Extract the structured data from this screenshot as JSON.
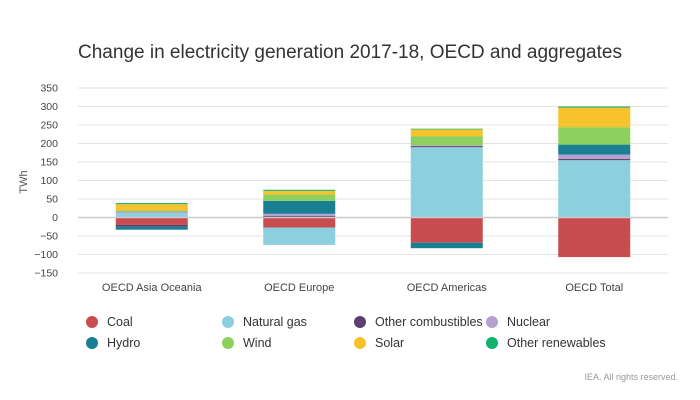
{
  "chart_data": {
    "type": "bar",
    "stacked": true,
    "title": "Change in electricity generation 2017-18, OECD and aggregates",
    "ylabel": "TWh",
    "xlabel": "",
    "ylim": [
      -150,
      350
    ],
    "yticks": [
      350,
      300,
      250,
      200,
      150,
      100,
      50,
      0,
      -50,
      -100,
      -150
    ],
    "ytick_labels": [
      "350",
      "300",
      "250",
      "200",
      "150",
      "100",
      "50",
      "0",
      "−50",
      "−100",
      "−150"
    ],
    "grid": true,
    "legend_position": "bottom",
    "categories": [
      "OECD Asia Oceania",
      "OECD Europe",
      "OECD Americas",
      "OECD Total"
    ],
    "series": [
      {
        "name": "Coal",
        "color": "#c94c4f",
        "values": [
          -20,
          -27,
          -68,
          -107
        ]
      },
      {
        "name": "Natural gas",
        "color": "#8ccfdf",
        "values": [
          12,
          -47,
          190,
          155
        ]
      },
      {
        "name": "Other combustibles",
        "color": "#5b3f6e",
        "values": [
          -5,
          4,
          3,
          3
        ]
      },
      {
        "name": "Nuclear",
        "color": "#b5a1cf",
        "values": [
          4,
          6,
          2,
          12
        ]
      },
      {
        "name": "Hydro",
        "color": "#1a7f93",
        "values": [
          -8,
          35,
          -15,
          27
        ]
      },
      {
        "name": "Wind",
        "color": "#8dd05e",
        "values": [
          3,
          17,
          25,
          47
        ]
      },
      {
        "name": "Solar",
        "color": "#f7c22b",
        "values": [
          17,
          10,
          18,
          53
        ]
      },
      {
        "name": "Other renewables",
        "color": "#11b26b",
        "values": [
          3,
          3,
          2,
          3
        ]
      }
    ]
  },
  "footer": "IEA. All rights reserved."
}
